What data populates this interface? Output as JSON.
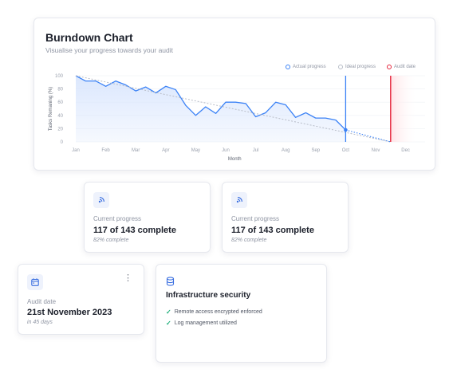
{
  "chart_card": {
    "title": "Burndown Chart",
    "subtitle": "Visualise your progress towards your audit",
    "legend": [
      {
        "label": "Actual progress",
        "color": "#3b82f6"
      },
      {
        "label": "Ideal progress",
        "color": "#b8bdc8"
      },
      {
        "label": "Audit date",
        "color": "#e5243b"
      }
    ]
  },
  "chart_data": {
    "type": "line",
    "ylabel": "Tasks Remaning (%)",
    "xlabel": "Month",
    "ylim": [
      0,
      100
    ],
    "yticks": [
      "100",
      "80",
      "60",
      "40",
      "20",
      "0"
    ],
    "categories": [
      "Jan",
      "Feb",
      "Mar",
      "Apr",
      "May",
      "Jun",
      "Jul",
      "Aug",
      "Sep",
      "Oct",
      "Nov",
      "Dec"
    ],
    "series": [
      {
        "name": "Actual progress",
        "color": "#3b82f6",
        "x": [
          0.0,
          0.33,
          0.67,
          1.0,
          1.33,
          1.67,
          2.0,
          2.33,
          2.67,
          3.0,
          3.33,
          3.67,
          4.0,
          4.33,
          4.67,
          5.0,
          5.33,
          5.67,
          6.0,
          6.33,
          6.67,
          7.0,
          7.33,
          7.67,
          8.0,
          8.33,
          8.67,
          9.0
        ],
        "values": [
          100,
          92,
          92,
          84,
          92,
          86,
          77,
          83,
          74,
          84,
          79,
          55,
          40,
          53,
          43,
          60,
          60,
          58,
          38,
          44,
          60,
          56,
          37,
          44,
          36,
          36,
          33,
          18
        ]
      },
      {
        "name": "Ideal progress",
        "color": "#b8bdc8",
        "x": [
          0,
          10.5
        ],
        "values": [
          100,
          0
        ]
      }
    ],
    "current_marker_x": 9.0,
    "audit_date_x": 10.5,
    "colors": {
      "actual": "#3b82f6",
      "area": "#dbe7fd",
      "ideal": "#b8bdc8",
      "audit": "#e5243b"
    }
  },
  "progress_cards": [
    {
      "label": "Current progress",
      "value": "117 of 143 complete",
      "note": "82% complete",
      "icon": "radar-icon"
    },
    {
      "label": "Current progress",
      "value": "117 of 143 complete",
      "note": "82% complete",
      "icon": "radar-icon"
    }
  ],
  "audit_card": {
    "label": "Audit date",
    "value": "21st November 2023",
    "note": "in 45 days",
    "icon": "calendar-icon",
    "menu_icon": "⋮"
  },
  "security_card": {
    "title": "Infrastructure security",
    "icon": "database-icon",
    "items": [
      "Remote access encrypted enforced",
      "Log management utilized"
    ],
    "check_color": "#22b07d"
  }
}
